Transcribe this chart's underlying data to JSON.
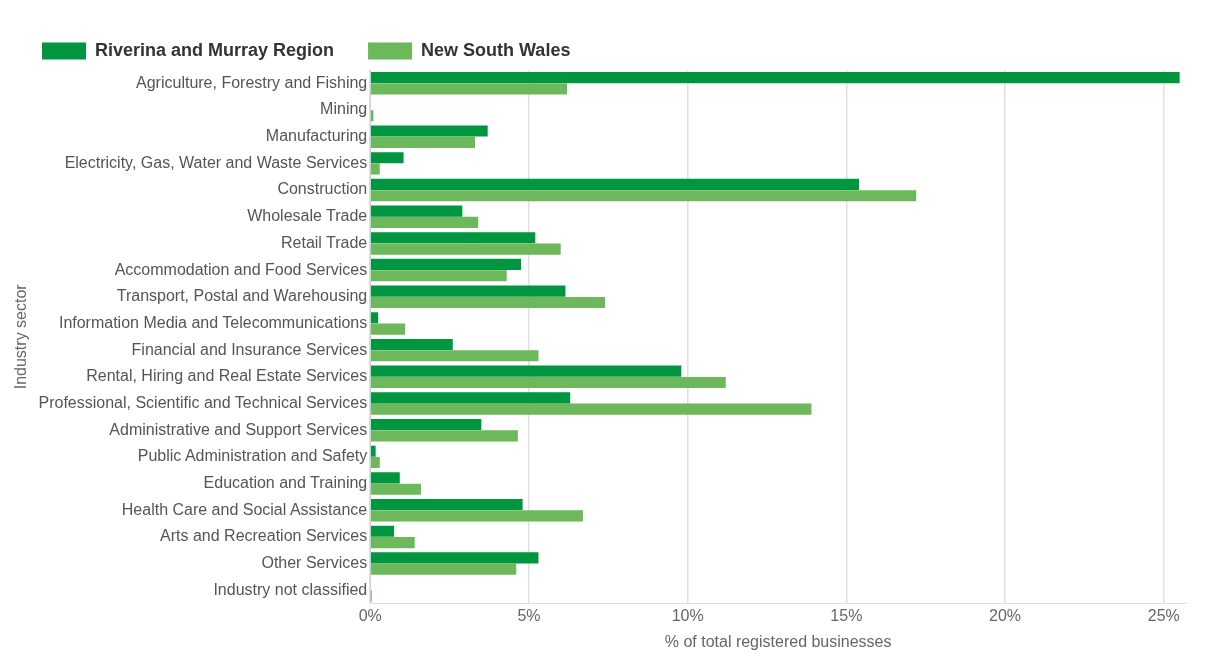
{
  "chart_data": {
    "type": "bar",
    "orientation": "horizontal",
    "xlabel": "% of total registered businesses",
    "ylabel": "Industry sector",
    "categories": [
      "Agriculture, Forestry and Fishing",
      "Mining",
      "Manufacturing",
      "Electricity, Gas, Water and Waste Services",
      "Construction",
      "Wholesale Trade",
      "Retail Trade",
      "Accommodation and Food Services",
      "Transport, Postal and Warehousing",
      "Information Media and Telecommunications",
      "Financial and Insurance Services",
      "Rental, Hiring and Real Estate Services",
      "Professional, Scientific and Technical Services",
      "Administrative and Support Services",
      "Public Administration and Safety",
      "Education and Training",
      "Health Care and Social Assistance",
      "Arts and Recreation Services",
      "Other Services",
      "Industry not classified"
    ],
    "series": [
      {
        "name": "Riverina and Murray Region",
        "color": "#00963f",
        "values": [
          25.5,
          0,
          3.7,
          1.05,
          15.4,
          2.9,
          5.2,
          4.75,
          6.15,
          0.25,
          2.6,
          9.8,
          6.3,
          3.5,
          0.17,
          0.93,
          4.8,
          0.75,
          5.3,
          0
        ]
      },
      {
        "name": "New South Wales",
        "color": "#6db85a",
        "values": [
          6.2,
          0.1,
          3.3,
          0.3,
          17.2,
          3.4,
          6.0,
          4.3,
          7.4,
          1.1,
          5.3,
          11.2,
          13.9,
          4.65,
          0.3,
          1.6,
          6.7,
          1.4,
          4.6,
          0.05
        ]
      }
    ],
    "xlim": [
      0,
      25.7
    ],
    "xticks": [
      {
        "value": 0,
        "label": "0%"
      },
      {
        "value": 5,
        "label": "5%"
      },
      {
        "value": 10,
        "label": "10%"
      },
      {
        "value": 15,
        "label": "15%"
      },
      {
        "value": 20,
        "label": "20%"
      },
      {
        "value": 25,
        "label": "25%"
      }
    ],
    "grid": "x",
    "legend": "top left"
  }
}
